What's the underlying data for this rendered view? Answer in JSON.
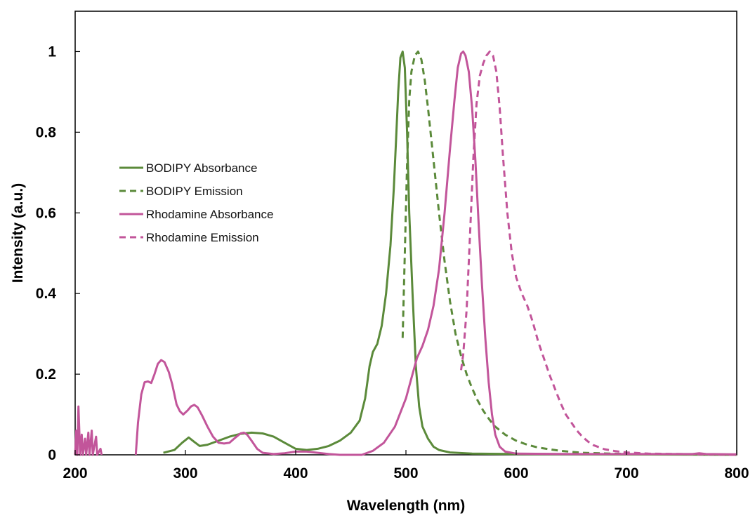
{
  "chart_data": {
    "type": "line",
    "title": "",
    "xlabel": "Wavelength (nm)",
    "ylabel": "Intensity (a.u.)",
    "xlim": [
      200,
      800
    ],
    "ylim": [
      0,
      1.1
    ],
    "xticks": [
      "200",
      "300",
      "400",
      "500",
      "600",
      "700",
      "800"
    ],
    "yticks": [
      "0",
      "0.2",
      "0.4",
      "0.6",
      "0.8",
      "1"
    ],
    "grid": false,
    "legend_position": "left",
    "series": [
      {
        "name": "BODIPY Absorbance",
        "color": "#5b8a3a",
        "dash": "solid",
        "points": [
          [
            280,
            0.005
          ],
          [
            290,
            0.012
          ],
          [
            297,
            0.03
          ],
          [
            303,
            0.043
          ],
          [
            308,
            0.032
          ],
          [
            313,
            0.022
          ],
          [
            320,
            0.025
          ],
          [
            330,
            0.035
          ],
          [
            340,
            0.045
          ],
          [
            350,
            0.052
          ],
          [
            360,
            0.055
          ],
          [
            370,
            0.053
          ],
          [
            380,
            0.045
          ],
          [
            390,
            0.03
          ],
          [
            400,
            0.015
          ],
          [
            410,
            0.012
          ],
          [
            420,
            0.015
          ],
          [
            430,
            0.022
          ],
          [
            440,
            0.035
          ],
          [
            450,
            0.055
          ],
          [
            458,
            0.085
          ],
          [
            463,
            0.14
          ],
          [
            467,
            0.22
          ],
          [
            470,
            0.255
          ],
          [
            474,
            0.275
          ],
          [
            478,
            0.32
          ],
          [
            482,
            0.4
          ],
          [
            486,
            0.52
          ],
          [
            489,
            0.66
          ],
          [
            491,
            0.78
          ],
          [
            493,
            0.9
          ],
          [
            495,
            0.985
          ],
          [
            497,
            1.0
          ],
          [
            499,
            0.96
          ],
          [
            501,
            0.8
          ],
          [
            503,
            0.6
          ],
          [
            506,
            0.4
          ],
          [
            509,
            0.22
          ],
          [
            512,
            0.12
          ],
          [
            515,
            0.07
          ],
          [
            520,
            0.04
          ],
          [
            525,
            0.02
          ],
          [
            530,
            0.012
          ],
          [
            540,
            0.006
          ],
          [
            560,
            0.003
          ],
          [
            600,
            0.002
          ],
          [
            700,
            0.001
          ],
          [
            800,
            0.0
          ]
        ]
      },
      {
        "name": "BODIPY Emission",
        "color": "#5b8a3a",
        "dash": "dashed",
        "points": [
          [
            497,
            0.29
          ],
          [
            499,
            0.5
          ],
          [
            501,
            0.72
          ],
          [
            503,
            0.88
          ],
          [
            505,
            0.95
          ],
          [
            508,
            0.99
          ],
          [
            511,
            1.0
          ],
          [
            514,
            0.98
          ],
          [
            517,
            0.93
          ],
          [
            520,
            0.86
          ],
          [
            525,
            0.73
          ],
          [
            530,
            0.6
          ],
          [
            535,
            0.48
          ],
          [
            540,
            0.38
          ],
          [
            545,
            0.3
          ],
          [
            550,
            0.245
          ],
          [
            555,
            0.2
          ],
          [
            560,
            0.165
          ],
          [
            565,
            0.135
          ],
          [
            570,
            0.11
          ],
          [
            575,
            0.09
          ],
          [
            580,
            0.072
          ],
          [
            590,
            0.05
          ],
          [
            600,
            0.035
          ],
          [
            610,
            0.025
          ],
          [
            620,
            0.018
          ],
          [
            640,
            0.01
          ],
          [
            660,
            0.005
          ],
          [
            700,
            0.002
          ],
          [
            750,
            0.001
          ],
          [
            800,
            0.0
          ]
        ]
      },
      {
        "name": "Rhodamine Absorbance",
        "color": "#c2559a",
        "dash": "solid",
        "points": [
          [
            255,
            0.0
          ],
          [
            257,
            0.08
          ],
          [
            260,
            0.15
          ],
          [
            263,
            0.18
          ],
          [
            266,
            0.182
          ],
          [
            269,
            0.178
          ],
          [
            272,
            0.2
          ],
          [
            275,
            0.226
          ],
          [
            278,
            0.235
          ],
          [
            281,
            0.23
          ],
          [
            285,
            0.205
          ],
          [
            288,
            0.175
          ],
          [
            292,
            0.125
          ],
          [
            295,
            0.108
          ],
          [
            298,
            0.1
          ],
          [
            302,
            0.11
          ],
          [
            305,
            0.12
          ],
          [
            308,
            0.124
          ],
          [
            311,
            0.118
          ],
          [
            315,
            0.098
          ],
          [
            320,
            0.07
          ],
          [
            325,
            0.045
          ],
          [
            330,
            0.03
          ],
          [
            335,
            0.028
          ],
          [
            340,
            0.03
          ],
          [
            345,
            0.042
          ],
          [
            350,
            0.053
          ],
          [
            353,
            0.055
          ],
          [
            356,
            0.05
          ],
          [
            360,
            0.035
          ],
          [
            365,
            0.015
          ],
          [
            370,
            0.005
          ],
          [
            380,
            0.002
          ],
          [
            390,
            0.004
          ],
          [
            400,
            0.008
          ],
          [
            410,
            0.008
          ],
          [
            420,
            0.005
          ],
          [
            430,
            0.002
          ],
          [
            440,
            0.0
          ],
          [
            460,
            0.0
          ],
          [
            470,
            0.01
          ],
          [
            480,
            0.03
          ],
          [
            490,
            0.07
          ],
          [
            500,
            0.14
          ],
          [
            505,
            0.19
          ],
          [
            510,
            0.24
          ],
          [
            515,
            0.27
          ],
          [
            520,
            0.31
          ],
          [
            525,
            0.37
          ],
          [
            530,
            0.46
          ],
          [
            535,
            0.6
          ],
          [
            540,
            0.76
          ],
          [
            544,
            0.88
          ],
          [
            547,
            0.96
          ],
          [
            550,
            0.995
          ],
          [
            552,
            1.0
          ],
          [
            554,
            0.99
          ],
          [
            557,
            0.95
          ],
          [
            560,
            0.86
          ],
          [
            563,
            0.73
          ],
          [
            566,
            0.57
          ],
          [
            569,
            0.42
          ],
          [
            572,
            0.29
          ],
          [
            575,
            0.18
          ],
          [
            578,
            0.1
          ],
          [
            581,
            0.05
          ],
          [
            585,
            0.02
          ],
          [
            590,
            0.008
          ],
          [
            600,
            0.003
          ],
          [
            650,
            0.002
          ],
          [
            700,
            0.002
          ],
          [
            760,
            0.002
          ],
          [
            766,
            0.004
          ],
          [
            772,
            0.002
          ],
          [
            800,
            0.001
          ]
        ]
      },
      {
        "name": "Rhodamine Emission",
        "color": "#c2559a",
        "dash": "dashed",
        "points": [
          [
            550,
            0.21
          ],
          [
            552,
            0.25
          ],
          [
            555,
            0.36
          ],
          [
            558,
            0.54
          ],
          [
            561,
            0.73
          ],
          [
            564,
            0.87
          ],
          [
            567,
            0.94
          ],
          [
            570,
            0.97
          ],
          [
            573,
            0.99
          ],
          [
            576,
            1.0
          ],
          [
            579,
            0.99
          ],
          [
            582,
            0.95
          ],
          [
            585,
            0.86
          ],
          [
            588,
            0.74
          ],
          [
            592,
            0.6
          ],
          [
            596,
            0.5
          ],
          [
            600,
            0.44
          ],
          [
            605,
            0.4
          ],
          [
            610,
            0.37
          ],
          [
            615,
            0.33
          ],
          [
            620,
            0.28
          ],
          [
            625,
            0.24
          ],
          [
            630,
            0.2
          ],
          [
            635,
            0.165
          ],
          [
            640,
            0.13
          ],
          [
            645,
            0.1
          ],
          [
            650,
            0.08
          ],
          [
            655,
            0.06
          ],
          [
            660,
            0.045
          ],
          [
            665,
            0.033
          ],
          [
            670,
            0.024
          ],
          [
            680,
            0.014
          ],
          [
            690,
            0.009
          ],
          [
            700,
            0.006
          ],
          [
            720,
            0.003
          ],
          [
            750,
            0.002
          ],
          [
            800,
            0.0
          ]
        ]
      },
      {
        "name": "",
        "color": "#c2559a",
        "dash": "solid",
        "points": [
          [
            200,
            0.0
          ],
          [
            201,
            0.06
          ],
          [
            202,
            0.0
          ],
          [
            203,
            0.12
          ],
          [
            204.5,
            0.0
          ],
          [
            206,
            0.05
          ],
          [
            207,
            0.0
          ],
          [
            209,
            0.04
          ],
          [
            210,
            0.0
          ],
          [
            212,
            0.055
          ],
          [
            213,
            0.0
          ],
          [
            215,
            0.06
          ],
          [
            216,
            0.0
          ],
          [
            219,
            0.045
          ],
          [
            220,
            0.0
          ],
          [
            223,
            0.015
          ],
          [
            224,
            0.0
          ]
        ]
      }
    ]
  }
}
